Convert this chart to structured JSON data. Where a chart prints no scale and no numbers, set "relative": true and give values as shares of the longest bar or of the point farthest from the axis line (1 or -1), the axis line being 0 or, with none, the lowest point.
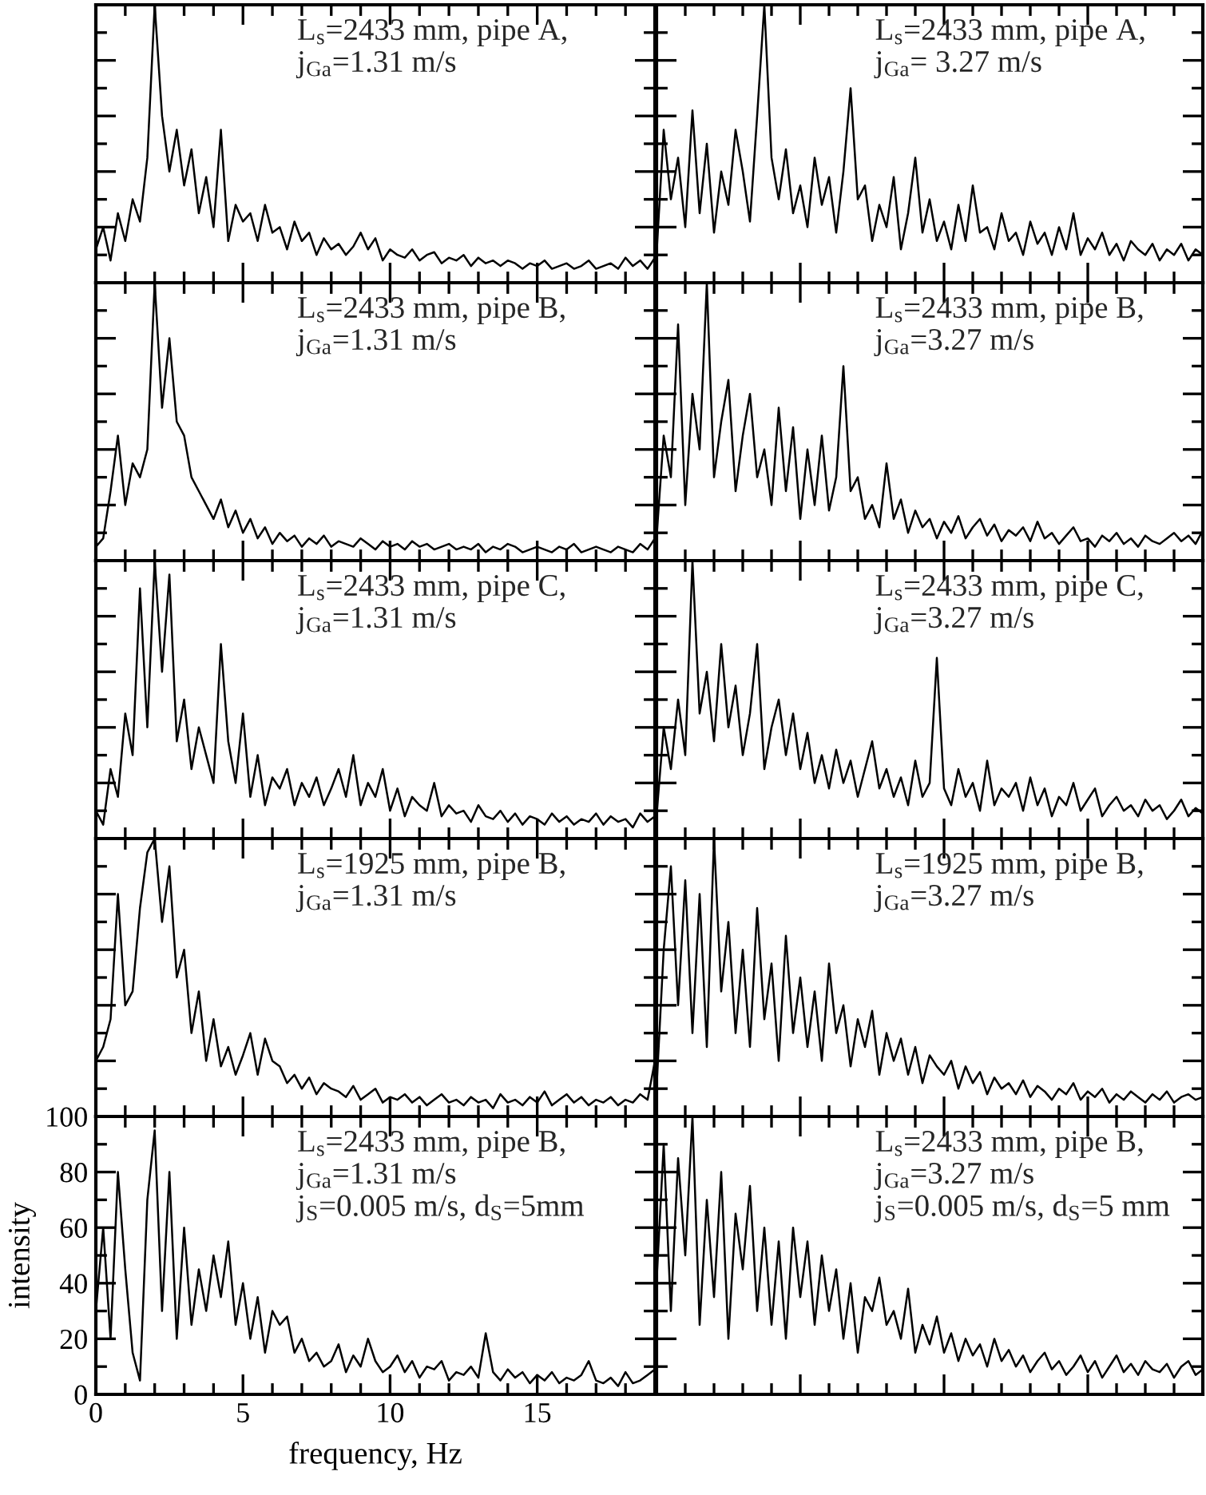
{
  "chart_data": [
    {
      "type": "line",
      "relative": true,
      "annotations": [
        "L$_{s}$=2433 mm, pipe A,",
        "j$_{Ga}$=1.31 m/s"
      ],
      "tick_labels": false,
      "categories": [
        null,
        null,
        null,
        null,
        null,
        null,
        null,
        null,
        null,
        null,
        null,
        null,
        null,
        null,
        null,
        null,
        null,
        null,
        null,
        null,
        null,
        null,
        null,
        null,
        null,
        null,
        null,
        null,
        null,
        null,
        null,
        null,
        null,
        null,
        null,
        null,
        null,
        null,
        null,
        null,
        null,
        null,
        null,
        null,
        null,
        null,
        null,
        null,
        null,
        null,
        null,
        null,
        null,
        null,
        null,
        null,
        null,
        null,
        null,
        null,
        null,
        null,
        null,
        null,
        null,
        null,
        null,
        null,
        null,
        null,
        null,
        null,
        null,
        null,
        null,
        null,
        null
      ],
      "series": [
        {
          "color": "#000000",
          "values": [
            0.12,
            0.2,
            0.08,
            0.25,
            0.15,
            0.3,
            0.22,
            0.45,
            1,
            0.6,
            0.4,
            0.55,
            0.35,
            0.48,
            0.25,
            0.38,
            0.2,
            0.55,
            0.15,
            0.28,
            0.22,
            0.25,
            0.15,
            0.28,
            0.18,
            0.2,
            0.12,
            0.22,
            0.15,
            0.18,
            0.1,
            0.16,
            0.12,
            0.14,
            0.1,
            0.13,
            0.18,
            0.12,
            0.16,
            0.08,
            0.12,
            0.1,
            0.09,
            0.12,
            0.08,
            0.1,
            0.11,
            0.07,
            0.09,
            0.08,
            0.1,
            0.06,
            0.09,
            0.07,
            0.08,
            0.06,
            0.08,
            0.07,
            0.05,
            0.07,
            0.06,
            0.08,
            0.05,
            0.06,
            0.07,
            0.05,
            0.06,
            0.08,
            0.05,
            0.06,
            0.07,
            0.05,
            0.09,
            0.06,
            0.08,
            0.05,
            0.09
          ]
        }
      ]
    },
    {
      "type": "line",
      "relative": true,
      "annotations": [
        "L$_{s}$=2433 mm, pipe A,",
        "j$_{Ga}$= 3.27 m/s"
      ],
      "tick_labels": false,
      "categories": [
        null,
        null,
        null,
        null,
        null,
        null,
        null,
        null,
        null,
        null,
        null,
        null,
        null,
        null,
        null,
        null,
        null,
        null,
        null,
        null,
        null,
        null,
        null,
        null,
        null,
        null,
        null,
        null,
        null,
        null,
        null,
        null,
        null,
        null,
        null,
        null,
        null,
        null,
        null,
        null,
        null,
        null,
        null,
        null,
        null,
        null,
        null,
        null,
        null,
        null,
        null,
        null,
        null,
        null,
        null,
        null,
        null,
        null,
        null,
        null,
        null,
        null,
        null,
        null,
        null,
        null,
        null,
        null,
        null,
        null,
        null,
        null,
        null,
        null,
        null,
        null,
        null
      ],
      "series": [
        {
          "color": "#000000",
          "values": [
            0.1,
            0.55,
            0.3,
            0.45,
            0.2,
            0.62,
            0.25,
            0.5,
            0.18,
            0.4,
            0.28,
            0.55,
            0.4,
            0.22,
            0.6,
            1,
            0.45,
            0.3,
            0.48,
            0.25,
            0.35,
            0.2,
            0.45,
            0.28,
            0.38,
            0.18,
            0.4,
            0.7,
            0.3,
            0.35,
            0.15,
            0.28,
            0.2,
            0.38,
            0.12,
            0.25,
            0.45,
            0.18,
            0.3,
            0.15,
            0.22,
            0.12,
            0.28,
            0.15,
            0.35,
            0.18,
            0.2,
            0.12,
            0.25,
            0.15,
            0.18,
            0.1,
            0.22,
            0.14,
            0.18,
            0.1,
            0.2,
            0.12,
            0.25,
            0.1,
            0.16,
            0.12,
            0.18,
            0.1,
            0.14,
            0.08,
            0.15,
            0.12,
            0.1,
            0.14,
            0.08,
            0.12,
            0.1,
            0.14,
            0.08,
            0.12,
            0.1
          ]
        }
      ]
    },
    {
      "type": "line",
      "relative": true,
      "annotations": [
        "L$_{s}$=2433 mm, pipe B,",
        "j$_{Ga}$=1.31 m/s"
      ],
      "tick_labels": false,
      "categories": [
        null,
        null,
        null,
        null,
        null,
        null,
        null,
        null,
        null,
        null,
        null,
        null,
        null,
        null,
        null,
        null,
        null,
        null,
        null,
        null,
        null,
        null,
        null,
        null,
        null,
        null,
        null,
        null,
        null,
        null,
        null,
        null,
        null,
        null,
        null,
        null,
        null,
        null,
        null,
        null,
        null,
        null,
        null,
        null,
        null,
        null,
        null,
        null,
        null,
        null,
        null,
        null,
        null,
        null,
        null,
        null,
        null,
        null,
        null,
        null,
        null,
        null,
        null,
        null,
        null,
        null,
        null,
        null,
        null,
        null,
        null,
        null,
        null,
        null,
        null,
        null,
        null
      ],
      "series": [
        {
          "color": "#000000",
          "values": [
            0.05,
            0.08,
            0.25,
            0.45,
            0.2,
            0.35,
            0.3,
            0.4,
            1,
            0.55,
            0.8,
            0.5,
            0.45,
            0.3,
            0.25,
            0.2,
            0.15,
            0.22,
            0.12,
            0.18,
            0.1,
            0.15,
            0.08,
            0.12,
            0.06,
            0.1,
            0.07,
            0.09,
            0.05,
            0.08,
            0.06,
            0.09,
            0.05,
            0.07,
            0.06,
            0.05,
            0.08,
            0.06,
            0.04,
            0.07,
            0.05,
            0.06,
            0.04,
            0.07,
            0.05,
            0.06,
            0.04,
            0.05,
            0.06,
            0.04,
            0.05,
            0.04,
            0.06,
            0.03,
            0.05,
            0.04,
            0.06,
            0.05,
            0.03,
            0.04,
            0.05,
            0.04,
            0.03,
            0.05,
            0.04,
            0.06,
            0.03,
            0.04,
            0.05,
            0.04,
            0.03,
            0.05,
            0.04,
            0.03,
            0.06,
            0.04,
            0.08
          ]
        }
      ]
    },
    {
      "type": "line",
      "relative": true,
      "annotations": [
        "L$_{s}$=2433 mm, pipe B,",
        "j$_{Ga}$=3.27 m/s"
      ],
      "tick_labels": false,
      "categories": [
        null,
        null,
        null,
        null,
        null,
        null,
        null,
        null,
        null,
        null,
        null,
        null,
        null,
        null,
        null,
        null,
        null,
        null,
        null,
        null,
        null,
        null,
        null,
        null,
        null,
        null,
        null,
        null,
        null,
        null,
        null,
        null,
        null,
        null,
        null,
        null,
        null,
        null,
        null,
        null,
        null,
        null,
        null,
        null,
        null,
        null,
        null,
        null,
        null,
        null,
        null,
        null,
        null,
        null,
        null,
        null,
        null,
        null,
        null,
        null,
        null,
        null,
        null,
        null,
        null,
        null,
        null,
        null,
        null,
        null,
        null,
        null,
        null,
        null,
        null,
        null,
        null
      ],
      "series": [
        {
          "color": "#000000",
          "values": [
            0.08,
            0.45,
            0.3,
            0.85,
            0.2,
            0.6,
            0.4,
            1,
            0.3,
            0.5,
            0.65,
            0.25,
            0.45,
            0.6,
            0.3,
            0.4,
            0.2,
            0.55,
            0.25,
            0.48,
            0.15,
            0.4,
            0.2,
            0.45,
            0.18,
            0.3,
            0.7,
            0.25,
            0.3,
            0.15,
            0.2,
            0.12,
            0.35,
            0.15,
            0.22,
            0.1,
            0.18,
            0.12,
            0.15,
            0.08,
            0.14,
            0.1,
            0.16,
            0.08,
            0.12,
            0.15,
            0.09,
            0.13,
            0.07,
            0.11,
            0.09,
            0.12,
            0.07,
            0.14,
            0.08,
            0.1,
            0.06,
            0.09,
            0.12,
            0.07,
            0.08,
            0.05,
            0.09,
            0.07,
            0.1,
            0.06,
            0.08,
            0.05,
            0.09,
            0.07,
            0.06,
            0.08,
            0.1,
            0.07,
            0.09,
            0.06,
            0.11
          ]
        }
      ]
    },
    {
      "type": "line",
      "relative": true,
      "annotations": [
        "L$_{s}$=2433 mm, pipe C,",
        "j$_{Ga}$=1.31 m/s"
      ],
      "tick_labels": false,
      "categories": [
        null,
        null,
        null,
        null,
        null,
        null,
        null,
        null,
        null,
        null,
        null,
        null,
        null,
        null,
        null,
        null,
        null,
        null,
        null,
        null,
        null,
        null,
        null,
        null,
        null,
        null,
        null,
        null,
        null,
        null,
        null,
        null,
        null,
        null,
        null,
        null,
        null,
        null,
        null,
        null,
        null,
        null,
        null,
        null,
        null,
        null,
        null,
        null,
        null,
        null,
        null,
        null,
        null,
        null,
        null,
        null,
        null,
        null,
        null,
        null,
        null,
        null,
        null,
        null,
        null,
        null,
        null,
        null,
        null,
        null,
        null,
        null,
        null,
        null,
        null,
        null,
        null
      ],
      "series": [
        {
          "color": "#000000",
          "values": [
            0.1,
            0.05,
            0.25,
            0.15,
            0.45,
            0.3,
            0.9,
            0.4,
            1,
            0.6,
            0.95,
            0.35,
            0.5,
            0.25,
            0.4,
            0.3,
            0.2,
            0.7,
            0.35,
            0.2,
            0.45,
            0.15,
            0.3,
            0.12,
            0.22,
            0.18,
            0.25,
            0.12,
            0.2,
            0.15,
            0.22,
            0.12,
            0.18,
            0.25,
            0.15,
            0.3,
            0.12,
            0.2,
            0.15,
            0.25,
            0.1,
            0.18,
            0.08,
            0.15,
            0.12,
            0.1,
            0.2,
            0.08,
            0.12,
            0.09,
            0.1,
            0.06,
            0.12,
            0.08,
            0.07,
            0.1,
            0.06,
            0.09,
            0.05,
            0.08,
            0.07,
            0.05,
            0.09,
            0.06,
            0.08,
            0.05,
            0.07,
            0.06,
            0.09,
            0.05,
            0.08,
            0.06,
            0.07,
            0.04,
            0.09,
            0.06,
            0.08
          ]
        }
      ]
    },
    {
      "type": "line",
      "relative": true,
      "annotations": [
        "L$_{s}$=2433 mm, pipe C,",
        "j$_{Ga}$=3.27 m/s"
      ],
      "tick_labels": false,
      "categories": [
        null,
        null,
        null,
        null,
        null,
        null,
        null,
        null,
        null,
        null,
        null,
        null,
        null,
        null,
        null,
        null,
        null,
        null,
        null,
        null,
        null,
        null,
        null,
        null,
        null,
        null,
        null,
        null,
        null,
        null,
        null,
        null,
        null,
        null,
        null,
        null,
        null,
        null,
        null,
        null,
        null,
        null,
        null,
        null,
        null,
        null,
        null,
        null,
        null,
        null,
        null,
        null,
        null,
        null,
        null,
        null,
        null,
        null,
        null,
        null,
        null,
        null,
        null,
        null,
        null,
        null,
        null,
        null,
        null,
        null,
        null,
        null,
        null,
        null,
        null,
        null,
        null
      ],
      "series": [
        {
          "color": "#000000",
          "values": [
            0.08,
            0.4,
            0.25,
            0.5,
            0.3,
            1,
            0.45,
            0.6,
            0.35,
            0.7,
            0.4,
            0.55,
            0.3,
            0.45,
            0.7,
            0.25,
            0.4,
            0.5,
            0.3,
            0.45,
            0.25,
            0.38,
            0.2,
            0.3,
            0.18,
            0.32,
            0.2,
            0.28,
            0.15,
            0.25,
            0.35,
            0.18,
            0.25,
            0.15,
            0.22,
            0.12,
            0.28,
            0.15,
            0.2,
            0.65,
            0.18,
            0.12,
            0.25,
            0.15,
            0.2,
            0.1,
            0.28,
            0.12,
            0.18,
            0.15,
            0.2,
            0.1,
            0.22,
            0.12,
            0.18,
            0.08,
            0.15,
            0.12,
            0.2,
            0.1,
            0.14,
            0.18,
            0.08,
            0.12,
            0.15,
            0.1,
            0.12,
            0.08,
            0.14,
            0.1,
            0.12,
            0.07,
            0.1,
            0.14,
            0.08,
            0.11,
            0.09
          ]
        }
      ]
    },
    {
      "type": "line",
      "relative": true,
      "annotations": [
        "L$_{s}$=1925 mm, pipe B,",
        "j$_{Ga}$=1.31 m/s"
      ],
      "tick_labels": false,
      "categories": [
        null,
        null,
        null,
        null,
        null,
        null,
        null,
        null,
        null,
        null,
        null,
        null,
        null,
        null,
        null,
        null,
        null,
        null,
        null,
        null,
        null,
        null,
        null,
        null,
        null,
        null,
        null,
        null,
        null,
        null,
        null,
        null,
        null,
        null,
        null,
        null,
        null,
        null,
        null,
        null,
        null,
        null,
        null,
        null,
        null,
        null,
        null,
        null,
        null,
        null,
        null,
        null,
        null,
        null,
        null,
        null,
        null,
        null,
        null,
        null,
        null,
        null,
        null,
        null,
        null,
        null,
        null,
        null,
        null,
        null,
        null,
        null,
        null,
        null,
        null,
        null,
        null
      ],
      "series": [
        {
          "color": "#000000",
          "values": [
            0.2,
            0.25,
            0.35,
            0.8,
            0.4,
            0.45,
            0.75,
            0.95,
            1,
            0.7,
            0.9,
            0.5,
            0.6,
            0.3,
            0.45,
            0.2,
            0.35,
            0.18,
            0.25,
            0.15,
            0.22,
            0.3,
            0.15,
            0.28,
            0.2,
            0.18,
            0.12,
            0.15,
            0.1,
            0.14,
            0.08,
            0.12,
            0.1,
            0.09,
            0.07,
            0.11,
            0.06,
            0.08,
            0.1,
            0.05,
            0.07,
            0.06,
            0.08,
            0.05,
            0.07,
            0.04,
            0.06,
            0.08,
            0.05,
            0.06,
            0.04,
            0.07,
            0.05,
            0.06,
            0.03,
            0.08,
            0.05,
            0.06,
            0.04,
            0.07,
            0.05,
            0.09,
            0.04,
            0.06,
            0.08,
            0.05,
            0.07,
            0.04,
            0.06,
            0.05,
            0.07,
            0.04,
            0.06,
            0.05,
            0.08,
            0.06,
            0.2
          ]
        }
      ]
    },
    {
      "type": "line",
      "relative": true,
      "annotations": [
        "L$_{s}$=1925 mm, pipe B,",
        "j$_{Ga}$=3.27 m/s"
      ],
      "tick_labels": false,
      "categories": [
        null,
        null,
        null,
        null,
        null,
        null,
        null,
        null,
        null,
        null,
        null,
        null,
        null,
        null,
        null,
        null,
        null,
        null,
        null,
        null,
        null,
        null,
        null,
        null,
        null,
        null,
        null,
        null,
        null,
        null,
        null,
        null,
        null,
        null,
        null,
        null,
        null,
        null,
        null,
        null,
        null,
        null,
        null,
        null,
        null,
        null,
        null,
        null,
        null,
        null,
        null,
        null,
        null,
        null,
        null,
        null,
        null,
        null,
        null,
        null,
        null,
        null,
        null,
        null,
        null,
        null,
        null,
        null,
        null,
        null,
        null,
        null,
        null,
        null,
        null,
        null,
        null
      ],
      "series": [
        {
          "color": "#000000",
          "values": [
            0.1,
            0.6,
            0.9,
            0.4,
            0.85,
            0.3,
            0.8,
            0.25,
            1,
            0.45,
            0.7,
            0.3,
            0.6,
            0.25,
            0.75,
            0.35,
            0.55,
            0.2,
            0.65,
            0.3,
            0.5,
            0.25,
            0.45,
            0.2,
            0.55,
            0.3,
            0.4,
            0.18,
            0.35,
            0.25,
            0.38,
            0.15,
            0.3,
            0.2,
            0.28,
            0.15,
            0.25,
            0.12,
            0.22,
            0.18,
            0.15,
            0.2,
            0.1,
            0.18,
            0.12,
            0.16,
            0.08,
            0.14,
            0.1,
            0.12,
            0.08,
            0.13,
            0.07,
            0.11,
            0.09,
            0.06,
            0.1,
            0.08,
            0.12,
            0.06,
            0.09,
            0.07,
            0.1,
            0.05,
            0.08,
            0.06,
            0.09,
            0.07,
            0.05,
            0.08,
            0.06,
            0.09,
            0.05,
            0.07,
            0.08,
            0.06,
            0.07
          ]
        }
      ]
    },
    {
      "type": "line",
      "annotations": [
        "L$_{s}$=2433 mm, pipe B,",
        "j$_{Ga}$=1.31 m/s",
        "j$_{S}$=0.005 m/s, d$_{S}$=5mm"
      ],
      "xlabel": "frequency, Hz",
      "ylabel": "intensity",
      "xlim": [
        0,
        19
      ],
      "ylim": [
        0,
        100
      ],
      "xticks": [
        0,
        5,
        10,
        15
      ],
      "yticks": [
        0,
        20,
        40,
        60,
        80,
        100
      ],
      "x": [
        0,
        0.25,
        0.5,
        0.75,
        1,
        1.25,
        1.5,
        1.75,
        2,
        2.25,
        2.5,
        2.75,
        3,
        3.25,
        3.5,
        3.75,
        4,
        4.25,
        4.5,
        4.75,
        5,
        5.25,
        5.5,
        5.75,
        6,
        6.25,
        6.5,
        6.75,
        7,
        7.25,
        7.5,
        7.75,
        8,
        8.25,
        8.5,
        8.75,
        9,
        9.25,
        9.5,
        9.75,
        10,
        10.25,
        10.5,
        10.75,
        11,
        11.25,
        11.5,
        11.75,
        12,
        12.25,
        12.5,
        12.75,
        13,
        13.25,
        13.5,
        13.75,
        14,
        14.25,
        14.5,
        14.75,
        15,
        15.25,
        15.5,
        15.75,
        16,
        16.25,
        16.5,
        16.75,
        17,
        17.25,
        17.5,
        17.75,
        18,
        18.25,
        18.5,
        18.75,
        19
      ],
      "series": [
        {
          "color": "#000000",
          "values": [
            30,
            60,
            20,
            80,
            45,
            15,
            5,
            70,
            95,
            30,
            80,
            20,
            60,
            25,
            45,
            30,
            50,
            35,
            55,
            25,
            40,
            20,
            35,
            15,
            30,
            25,
            28,
            15,
            20,
            12,
            15,
            10,
            12,
            18,
            8,
            14,
            10,
            20,
            12,
            8,
            10,
            14,
            8,
            12,
            6,
            10,
            9,
            12,
            5,
            8,
            7,
            10,
            6,
            22,
            8,
            5,
            9,
            6,
            8,
            4,
            7,
            5,
            8,
            4,
            6,
            5,
            7,
            12,
            5,
            4,
            6,
            3,
            8,
            4,
            5,
            7,
            9
          ]
        }
      ]
    },
    {
      "type": "line",
      "relative": true,
      "annotations": [
        "L$_{s}$=2433 mm, pipe B,",
        "j$_{Ga}$=3.27 m/s",
        "j$_{S}$=0.005 m/s, d$_{S}$=5 mm"
      ],
      "tick_labels": false,
      "categories": [
        null,
        null,
        null,
        null,
        null,
        null,
        null,
        null,
        null,
        null,
        null,
        null,
        null,
        null,
        null,
        null,
        null,
        null,
        null,
        null,
        null,
        null,
        null,
        null,
        null,
        null,
        null,
        null,
        null,
        null,
        null,
        null,
        null,
        null,
        null,
        null,
        null,
        null,
        null,
        null,
        null,
        null,
        null,
        null,
        null,
        null,
        null,
        null,
        null,
        null,
        null,
        null,
        null,
        null,
        null,
        null,
        null,
        null,
        null,
        null,
        null,
        null,
        null,
        null,
        null,
        null,
        null,
        null,
        null,
        null,
        null,
        null,
        null,
        null,
        null,
        null,
        null
      ],
      "series": [
        {
          "color": "#000000",
          "values": [
            0.4,
            0.9,
            0.3,
            0.85,
            0.5,
            1,
            0.25,
            0.7,
            0.35,
            0.8,
            0.2,
            0.65,
            0.45,
            0.75,
            0.3,
            0.6,
            0.25,
            0.55,
            0.2,
            0.6,
            0.35,
            0.55,
            0.25,
            0.5,
            0.3,
            0.45,
            0.2,
            0.4,
            0.15,
            0.35,
            0.3,
            0.42,
            0.25,
            0.3,
            0.2,
            0.38,
            0.15,
            0.25,
            0.18,
            0.28,
            0.15,
            0.22,
            0.12,
            0.2,
            0.14,
            0.18,
            0.1,
            0.2,
            0.12,
            0.16,
            0.1,
            0.14,
            0.08,
            0.12,
            0.15,
            0.09,
            0.12,
            0.07,
            0.1,
            0.14,
            0.08,
            0.12,
            0.06,
            0.1,
            0.14,
            0.08,
            0.11,
            0.07,
            0.12,
            0.09,
            0.08,
            0.11,
            0.06,
            0.1,
            0.12,
            0.07,
            0.09
          ]
        }
      ]
    }
  ]
}
